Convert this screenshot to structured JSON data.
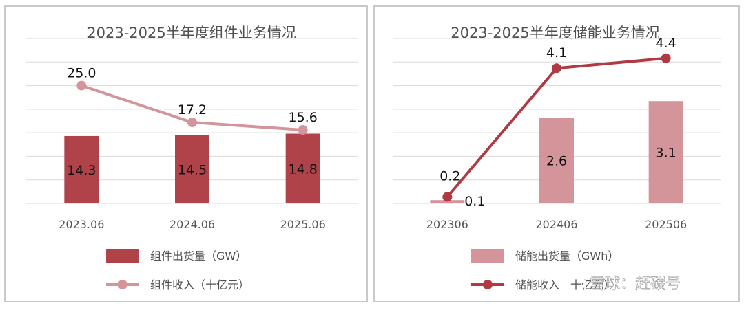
{
  "chart_data": [
    {
      "type": "bar",
      "title": "2023-2025半年度组件业务情况",
      "categories": [
        "2023.06",
        "2024.06",
        "2025.06"
      ],
      "series": [
        {
          "name": "组件出货量（GW）",
          "type": "bar",
          "values": [
            14.3,
            14.5,
            14.8
          ],
          "color": "#b0434a"
        },
        {
          "name": "组件收入（十亿元）",
          "type": "line",
          "values": [
            25.0,
            17.2,
            15.6
          ],
          "color": "#d4959a"
        }
      ],
      "ylim": [
        0,
        35
      ],
      "grid": true,
      "legend": "bottom"
    },
    {
      "type": "bar",
      "title": "2023-2025半年度储能业务情况",
      "categories": [
        "202306",
        "202406",
        "202506"
      ],
      "series": [
        {
          "name": "储能出货量（GWh）",
          "type": "bar",
          "values": [
            0.1,
            2.6,
            3.1
          ],
          "color": "#d4959a"
        },
        {
          "name": "储能收入（十亿元）",
          "type": "line",
          "values": [
            0.2,
            4.1,
            4.4
          ],
          "color": "#b03a44"
        }
      ],
      "ylim": [
        0,
        5
      ],
      "grid": true,
      "legend": "bottom"
    }
  ],
  "watermark": "雪球：赶碳号"
}
